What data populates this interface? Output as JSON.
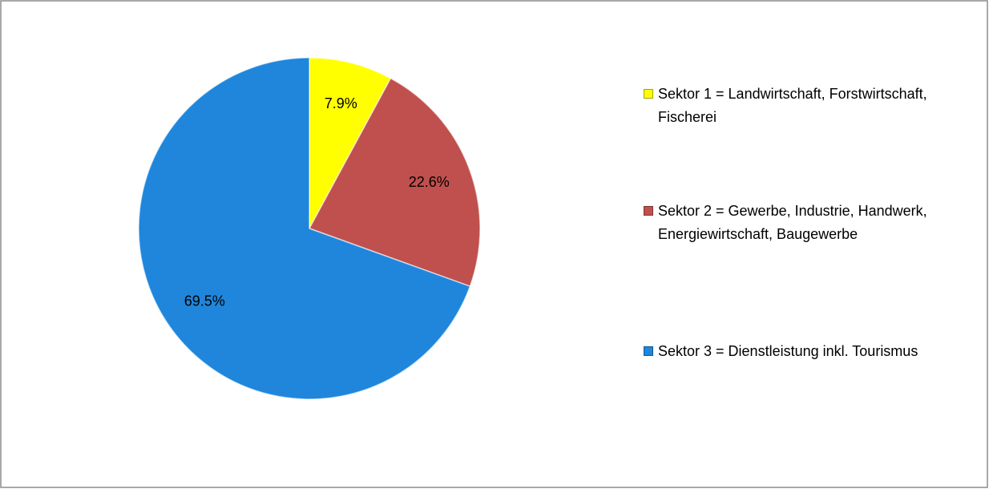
{
  "chart_data": {
    "type": "pie",
    "categories": [
      "Sektor 1 = Landwirtschaft, Forstwirtschaft, Fischerei",
      "Sektor 2 = Gewerbe, Industrie, Handwerk, Energiewirtschaft, Baugewerbe",
      "Sektor 3 = Dienstleistung inkl. Tourismus"
    ],
    "values": [
      7.9,
      22.6,
      69.5
    ],
    "value_labels": [
      "7.9%",
      "22.6%",
      "69.5%"
    ],
    "colors": [
      "#ffff00",
      "#c0504d",
      "#1f86dc"
    ],
    "legend": "right"
  }
}
